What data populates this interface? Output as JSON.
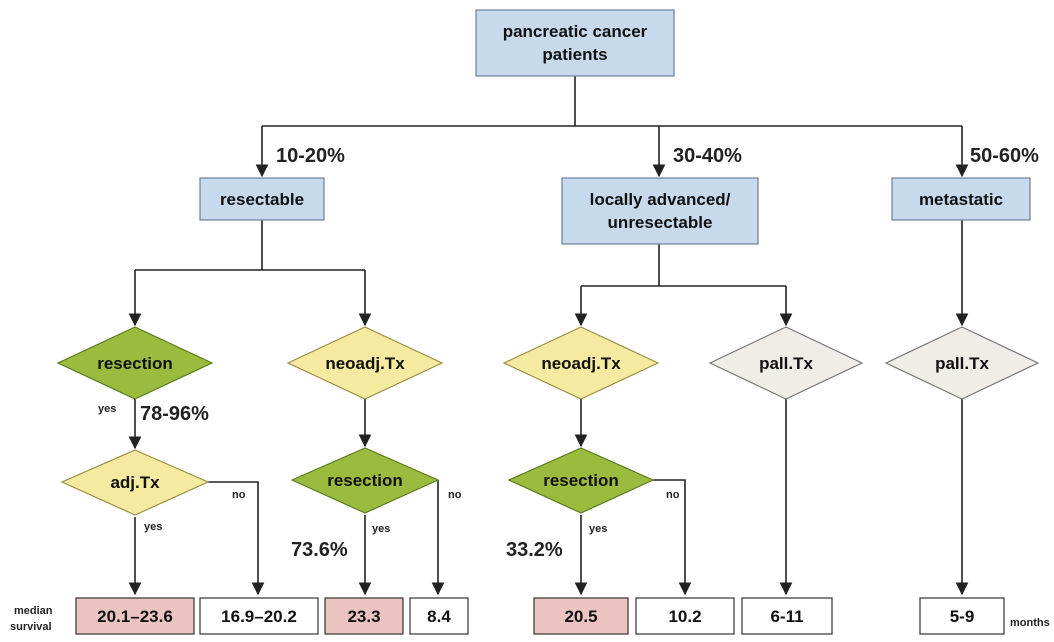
{
  "colors": {
    "box_blue": "#c7d9ec",
    "box_blue_stroke": "#6a7f95",
    "diamond_green": "#9bbb3f",
    "diamond_yellow": "#f6eaa0",
    "diamond_gray": "#efede6",
    "result_pink": "#ebc4c2",
    "result_white": "#ffffff",
    "line": "#222222"
  },
  "root": {
    "line1": "pancreatic cancer",
    "line2": "patients"
  },
  "categories": {
    "resectable": {
      "label": "resectable",
      "percent": "10-20%"
    },
    "locally_advanced": {
      "line1": "locally advanced/",
      "line2": "unresectable",
      "percent": "30-40%"
    },
    "metastatic": {
      "label": "metastatic",
      "percent": "50-60%"
    }
  },
  "decisions": {
    "resectable_resection": {
      "label": "resection",
      "yes_label": "yes",
      "percent": "78-96%"
    },
    "resectable_adj": {
      "label": "adj.Tx",
      "yes_label": "yes",
      "no_label": "no"
    },
    "resectable_neoadj": {
      "label": "neoadj.Tx"
    },
    "resectable_neoadj_resection": {
      "label": "resection",
      "yes_label": "yes",
      "no_label": "no",
      "percent": "73.6%"
    },
    "la_neoadj": {
      "label": "neoadj.Tx"
    },
    "la_neoadj_resection": {
      "label": "resection",
      "yes_label": "yes",
      "no_label": "no",
      "percent": "33.2%"
    },
    "la_pall": {
      "label": "pall.Tx"
    },
    "met_pall": {
      "label": "pall.Tx"
    }
  },
  "results": {
    "row_label_1": "median",
    "row_label_2": "survival",
    "unit": "months",
    "r1": "20.1–23.6",
    "r2": "16.9–20.2",
    "r3": "23.3",
    "r4": "8.4",
    "r5": "20.5",
    "r6": "10.2",
    "r7": "6-11",
    "r8": "5-9"
  }
}
